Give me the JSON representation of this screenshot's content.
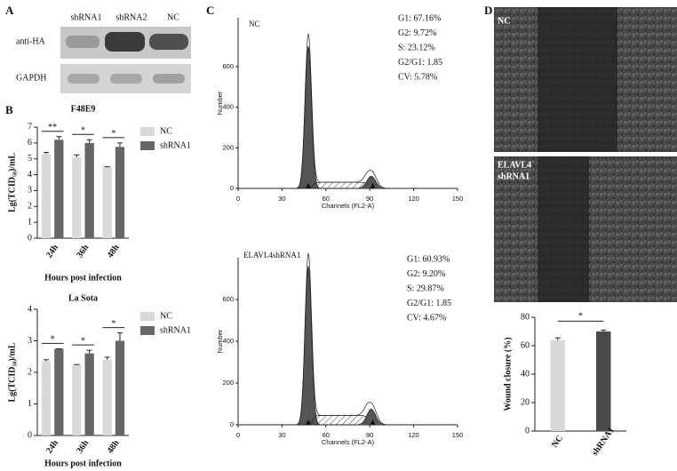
{
  "panels": [
    "A",
    "B",
    "C",
    "D"
  ],
  "blot": {
    "lanes": [
      "shRNA1",
      "shRNA2",
      "NC"
    ],
    "rows": [
      "anti-HA",
      "GAPDH"
    ]
  },
  "images": {
    "top_label": "NC",
    "bottom_label": [
      "ELAVL4",
      "shRNA1"
    ]
  },
  "chart_data": [
    {
      "type": "bar",
      "title": "F48E9",
      "ylabel": "Lg(TCID₅₀)/mL",
      "xlabel": "Hours post infection",
      "categories": [
        "24h",
        "36h",
        "48h"
      ],
      "series": [
        {
          "name": "NC",
          "color": "#d9d9d9",
          "values": [
            5.3,
            5.1,
            4.5
          ],
          "errors": [
            0.1,
            0.15,
            0
          ]
        },
        {
          "name": "shRNA1",
          "color": "#666666",
          "values": [
            6.2,
            6.0,
            5.75
          ],
          "errors": [
            0.2,
            0.2,
            0.25
          ]
        }
      ],
      "ylim": [
        0,
        7
      ],
      "yticks": [
        0,
        1,
        2,
        3,
        4,
        5,
        6,
        7
      ],
      "significance": [
        "**",
        "*",
        "*"
      ]
    },
    {
      "type": "bar",
      "title": "La Sota",
      "ylabel": "Lg(TCID₅₀)/mL",
      "xlabel": "Hours post infection",
      "categories": [
        "24h",
        "36h",
        "48h"
      ],
      "series": [
        {
          "name": "NC",
          "color": "#d9d9d9",
          "values": [
            2.35,
            2.25,
            2.4
          ],
          "errors": [
            0.05,
            0,
            0.08
          ]
        },
        {
          "name": "shRNA1",
          "color": "#666666",
          "values": [
            2.75,
            2.6,
            3.0
          ],
          "errors": [
            0,
            0.1,
            0.25
          ]
        }
      ],
      "ylim": [
        0,
        4
      ],
      "yticks": [
        0,
        1,
        2,
        3,
        4
      ],
      "significance": [
        "*",
        "*",
        "*"
      ]
    },
    {
      "type": "flow",
      "label": "NC",
      "xlabel": "Channels (FL2-A)",
      "ylabel": "Number",
      "stats": [
        "G1: 67.16%",
        "G2: 9.72%",
        "S: 23.12%",
        "G2/G1: 1.85",
        "CV: 5.78%"
      ],
      "xlim": [
        0,
        150
      ],
      "xticks": [
        0,
        30,
        60,
        90,
        120,
        150
      ],
      "ylim": [
        0,
        840
      ],
      "yticks": [
        0,
        200,
        400,
        600
      ]
    },
    {
      "type": "flow",
      "label": "ELAVL4shRNA1",
      "xlabel": "Channels (FL2-A)",
      "ylabel": "Number",
      "stats": [
        "G1: 60.93%",
        "G2: 9.20%",
        "S: 29.87%",
        "G2/G1: 1.85",
        "CV: 4.67%"
      ],
      "xlim": [
        0,
        150
      ],
      "xticks": [
        0,
        30,
        60,
        90,
        120,
        150
      ],
      "ylim": [
        0,
        800
      ],
      "yticks": [
        0,
        200,
        400,
        600
      ]
    },
    {
      "type": "bar",
      "ylabel": "Wound closure (%)",
      "categories": [
        "NC",
        "shRNA1"
      ],
      "values": [
        64,
        70
      ],
      "errors": [
        1.5,
        1
      ],
      "colors": [
        "#d9d9d9",
        "#4a4a4a"
      ],
      "ylim": [
        0,
        80
      ],
      "yticks": [
        0,
        20,
        40,
        60,
        80
      ],
      "significance": [
        "*"
      ]
    }
  ]
}
